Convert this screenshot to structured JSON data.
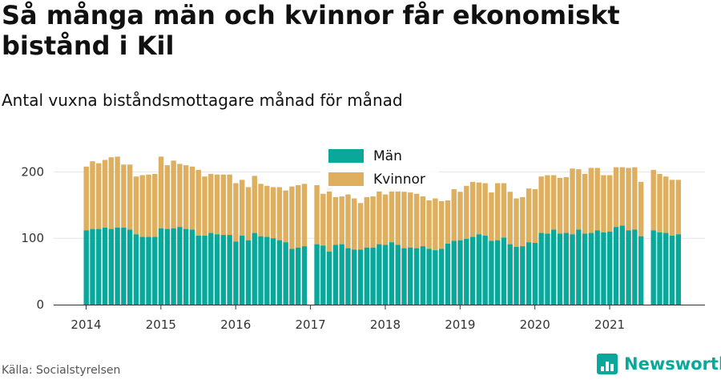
{
  "title": "Så många män och kvinnor får ekonomiskt bistånd i Kil",
  "subtitle": "Antal vuxna biståndsmottagare månad för månad",
  "source": "Källa: Socialstyrelsen",
  "brand": "Newsworthy",
  "colors": {
    "man": "#0aa89a",
    "kvinnor": "#ddaf5f",
    "grid": "#e4e4e4",
    "axis": "#333333"
  },
  "chart_data": {
    "type": "bar",
    "stacked": true,
    "xlabel": "",
    "ylabel": "",
    "ylim": [
      0,
      230
    ],
    "yticks": [
      0,
      100,
      200
    ],
    "grid": true,
    "legend_placement": "top-center",
    "year_ticks": [
      "2014",
      "2015",
      "2016",
      "2017",
      "2018",
      "2019",
      "2020",
      "2021"
    ],
    "first_month": "2014-01",
    "series": [
      {
        "name": "Män",
        "color": "#0aa89a",
        "values": [
          112,
          114,
          114,
          116,
          114,
          116,
          116,
          113,
          106,
          102,
          102,
          102,
          115,
          114,
          115,
          117,
          114,
          113,
          104,
          104,
          108,
          106,
          105,
          105,
          95,
          104,
          97,
          108,
          103,
          102,
          100,
          97,
          94,
          84,
          86,
          88,
          null,
          91,
          89,
          80,
          90,
          91,
          85,
          83,
          83,
          86,
          86,
          91,
          90,
          94,
          90,
          85,
          86,
          85,
          88,
          84,
          82,
          84,
          92,
          96,
          97,
          99,
          102,
          106,
          104,
          96,
          97,
          101,
          91,
          87,
          88,
          94,
          93,
          108,
          107,
          113,
          107,
          108,
          106,
          113,
          107,
          108,
          112,
          109,
          110,
          117,
          119,
          112,
          113,
          103,
          null,
          112,
          109,
          108,
          104,
          106
        ]
      },
      {
        "name": "Kvinnor",
        "color": "#ddaf5f",
        "values": [
          96,
          102,
          99,
          102,
          108,
          107,
          95,
          98,
          87,
          93,
          94,
          95,
          108,
          96,
          102,
          95,
          96,
          95,
          99,
          89,
          89,
          90,
          91,
          91,
          88,
          84,
          80,
          86,
          79,
          77,
          77,
          80,
          78,
          94,
          94,
          94,
          null,
          89,
          78,
          96,
          72,
          72,
          81,
          77,
          70,
          76,
          77,
          80,
          76,
          79,
          82,
          85,
          83,
          82,
          75,
          73,
          78,
          72,
          65,
          78,
          73,
          80,
          83,
          78,
          79,
          73,
          86,
          82,
          79,
          73,
          74,
          81,
          81,
          85,
          88,
          82,
          84,
          84,
          99,
          91,
          90,
          98,
          94,
          86,
          85,
          90,
          88,
          94,
          94,
          82,
          null,
          91,
          88,
          85,
          84,
          82
        ]
      }
    ],
    "gaps": [
      "2017-01",
      "2021-07"
    ]
  }
}
